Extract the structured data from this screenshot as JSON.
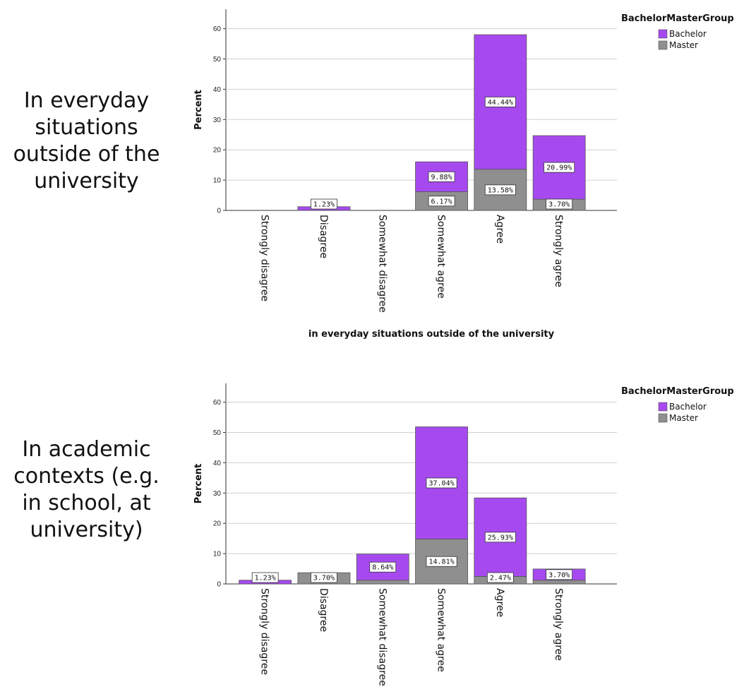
{
  "side_labels": [
    "In everyday\nsituations\noutside of the\nuniversity",
    "In academic\ncontexts (e.g.\nin school, at\nuniversity)"
  ],
  "colors": {
    "Bachelor": "#a64af0",
    "Master": "#8f8f8f"
  },
  "chart_data": [
    {
      "type": "bar",
      "stacked": true,
      "title": "",
      "xlabel": "in everyday situations outside of the university",
      "ylabel": "Percent",
      "ylim": [
        0,
        60
      ],
      "yticks": [
        0,
        10,
        20,
        30,
        40,
        50,
        60
      ],
      "grid": true,
      "legend": {
        "title": "BachelorMasterGroup",
        "position": "top-right"
      },
      "categories": [
        "Strongly disagree",
        "Disagree",
        "Somewhat disagree",
        "Somewhat agree",
        "Agree",
        "Strongly agree"
      ],
      "series": [
        {
          "name": "Master",
          "values": [
            0,
            0,
            0,
            6.17,
            13.58,
            3.7
          ],
          "labels": [
            "",
            "",
            "",
            "6.17%",
            "13.58%",
            "3.70%"
          ]
        },
        {
          "name": "Bachelor",
          "values": [
            0,
            1.23,
            0,
            9.88,
            44.44,
            20.99
          ],
          "labels": [
            "",
            "1.23%",
            "",
            "9.88%",
            "44.44%",
            "20.99%"
          ]
        }
      ]
    },
    {
      "type": "bar",
      "stacked": true,
      "title": "",
      "xlabel": "",
      "ylabel": "Percent",
      "ylim": [
        0,
        60
      ],
      "yticks": [
        0,
        10,
        20,
        30,
        40,
        50,
        60
      ],
      "grid": true,
      "legend": {
        "title": "BachelorMasterGroup",
        "position": "top-right"
      },
      "categories": [
        "Strongly disagree",
        "Disagree",
        "Somewhat disagree",
        "Somewhat agree",
        "Agree",
        "Strongly agree"
      ],
      "series": [
        {
          "name": "Master",
          "values": [
            0,
            3.7,
            1.23,
            14.81,
            2.47,
            1.23
          ],
          "labels": [
            "",
            "3.70%",
            "",
            "14.81%",
            "2.47%",
            ""
          ]
        },
        {
          "name": "Bachelor",
          "values": [
            1.23,
            0,
            8.64,
            37.04,
            25.93,
            3.7
          ],
          "labels": [
            "1.23%",
            "",
            "8.64%",
            "37.04%",
            "25.93%",
            "3.70%"
          ]
        }
      ]
    }
  ]
}
